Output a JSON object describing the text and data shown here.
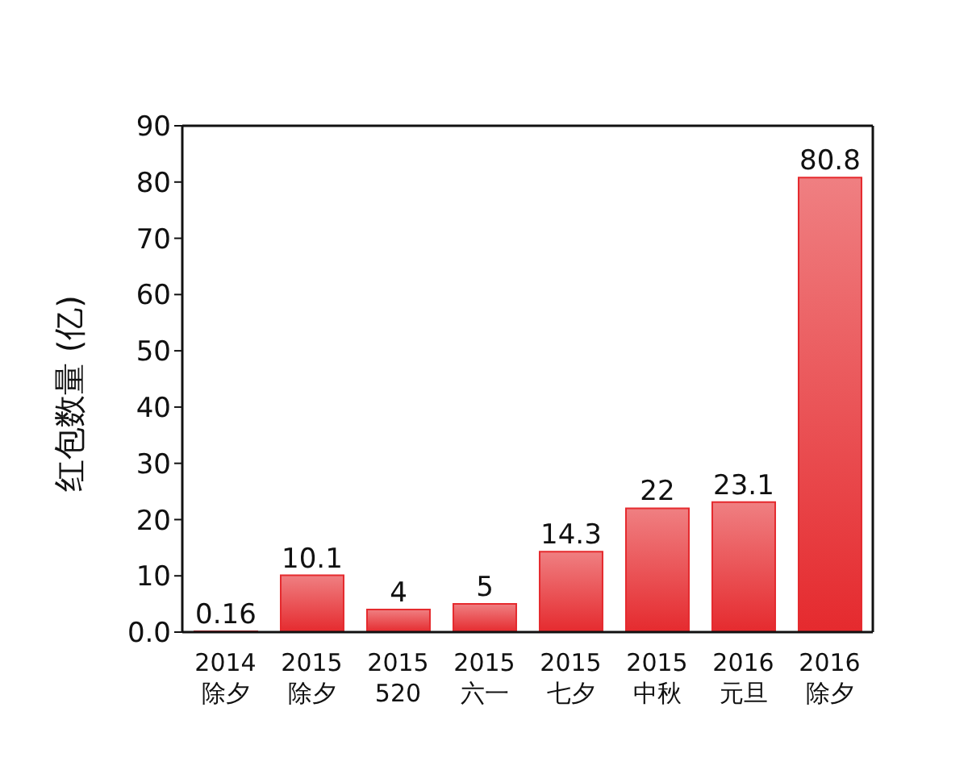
{
  "chart_data": {
    "type": "bar",
    "ylabel": "红包数量 (亿)",
    "categories": [
      "2014\n除夕",
      "2015\n除夕",
      "2015\n520",
      "2015\n六一",
      "2015\n七夕",
      "2015\n中秋",
      "2016\n元旦",
      "2016\n除夕"
    ],
    "values": [
      0.16,
      10.1,
      4,
      5,
      14.3,
      22,
      23.1,
      80.8
    ],
    "color": "#e52a2e",
    "ylim": [
      0,
      90
    ],
    "yticks": [
      {
        "value": 0,
        "label": "0.0"
      },
      10,
      20,
      30,
      40,
      50,
      60,
      70,
      80,
      90
    ],
    "grid": false,
    "data_labels": true
  }
}
